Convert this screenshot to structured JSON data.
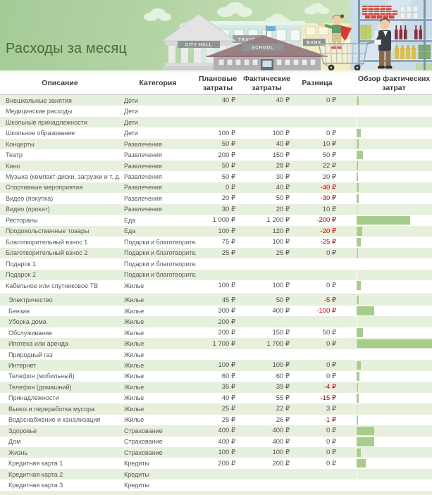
{
  "title": "Расходы за месяц",
  "illustration": {
    "signs": {
      "city_hall": "CITY HALL",
      "travel": "TRAVEL",
      "school": "SCHOOL",
      "bank": "BANK"
    }
  },
  "table": {
    "columns": [
      "Описание",
      "Категория",
      "Плановые затраты",
      "Фактические затраты",
      "Разница",
      "Обзор фактических затрат"
    ],
    "bar_max": 1700,
    "split_after_row": 18,
    "colors": {
      "title": "#4a6c30",
      "row-alt": "#e6f0dc",
      "bar": "#a7cd8c",
      "neg": "#c00000"
    },
    "rows": [
      {
        "description": "Внешкольные занятия",
        "category": "Дети",
        "planned": "40 ₽",
        "actual": "40 ₽",
        "diff": "0 ₽",
        "actual_value": 40
      },
      {
        "description": "Медицинские расходы",
        "category": "Дети",
        "planned": "",
        "actual": "",
        "diff": "",
        "actual_value": 0
      },
      {
        "description": "Школьные принадлежности",
        "category": "Дети",
        "planned": "",
        "actual": "",
        "diff": "",
        "actual_value": 0
      },
      {
        "description": "Школьное образование",
        "category": "Дети",
        "planned": "100 ₽",
        "actual": "100 ₽",
        "diff": "0 ₽",
        "actual_value": 100
      },
      {
        "description": "Концерты",
        "category": "Развлечения",
        "planned": "50 ₽",
        "actual": "40 ₽",
        "diff": "10 ₽",
        "actual_value": 40
      },
      {
        "description": "Театр",
        "category": "Развлечения",
        "planned": "200 ₽",
        "actual": "150 ₽",
        "diff": "50 ₽",
        "actual_value": 150
      },
      {
        "description": "Кино",
        "category": "Развлечения",
        "planned": "50 ₽",
        "actual": "28 ₽",
        "diff": "22 ₽",
        "actual_value": 28
      },
      {
        "description": "Музыка (компакт-диски, загрузки и т. д.)",
        "category": "Развлечения",
        "planned": "50 ₽",
        "actual": "30 ₽",
        "diff": "20 ₽",
        "actual_value": 30
      },
      {
        "description": "Спортивные мероприятия",
        "category": "Развлечения",
        "planned": "0 ₽",
        "actual": "40 ₽",
        "diff": "-40 ₽",
        "actual_value": 40
      },
      {
        "description": "Видео (покупка)",
        "category": "Развлечения",
        "planned": "20 ₽",
        "actual": "50 ₽",
        "diff": "-30 ₽",
        "actual_value": 50
      },
      {
        "description": "Видео (прокат)",
        "category": "Развлечения",
        "planned": "30 ₽",
        "actual": "20 ₽",
        "diff": "10 ₽",
        "actual_value": 20
      },
      {
        "description": "Рестораны",
        "category": "Еда",
        "planned": "1 000 ₽",
        "actual": "1 200 ₽",
        "diff": "-200 ₽",
        "actual_value": 1200
      },
      {
        "description": "Продовольственные товары",
        "category": "Еда",
        "planned": "100 ₽",
        "actual": "120 ₽",
        "diff": "-20 ₽",
        "actual_value": 120
      },
      {
        "description": "Благотворительный взнос 1",
        "category": "Подарки и благотворительность",
        "planned": "75 ₽",
        "actual": "100 ₽",
        "diff": "-25 ₽",
        "actual_value": 100
      },
      {
        "description": "Благотворительный взнос 2",
        "category": "Подарки и благотворительность",
        "planned": "25 ₽",
        "actual": "25 ₽",
        "diff": "0 ₽",
        "actual_value": 25
      },
      {
        "description": "Подарок 1",
        "category": "Подарки и благотворительность",
        "planned": "",
        "actual": "",
        "diff": "",
        "actual_value": 0
      },
      {
        "description": "Подарок 2",
        "category": "Подарки и благотворительность",
        "planned": "",
        "actual": "",
        "diff": "",
        "actual_value": 0
      },
      {
        "description": "Кабельное или спутниковое ТВ",
        "category": "Жилье",
        "planned": "100 ₽",
        "actual": "100 ₽",
        "diff": "0 ₽",
        "actual_value": 100
      },
      {
        "description": "Электричество",
        "category": "Жилье",
        "planned": "45 ₽",
        "actual": "50 ₽",
        "diff": "-5 ₽",
        "actual_value": 50
      },
      {
        "description": "Бензин",
        "category": "Жилье",
        "planned": "300 ₽",
        "actual": "400 ₽",
        "diff": "-100 ₽",
        "actual_value": 400
      },
      {
        "description": "Уборка дома",
        "category": "Жилье",
        "planned": "200 ₽",
        "actual": "",
        "diff": "",
        "actual_value": 0
      },
      {
        "description": "Обслуживание",
        "category": "Жилье",
        "planned": "200 ₽",
        "actual": "150 ₽",
        "diff": "50 ₽",
        "actual_value": 150
      },
      {
        "description": "Ипотека или аренда",
        "category": "Жилье",
        "planned": "1 700 ₽",
        "actual": "1 700 ₽",
        "diff": "0 ₽",
        "actual_value": 1700
      },
      {
        "description": "Природный газ",
        "category": "Жилье",
        "planned": "",
        "actual": "",
        "diff": "",
        "actual_value": 0
      },
      {
        "description": "Интернет",
        "category": "Жилье",
        "planned": "100 ₽",
        "actual": "100 ₽",
        "diff": "0 ₽",
        "actual_value": 100
      },
      {
        "description": "Телефон (мобильный)",
        "category": "Жилье",
        "planned": "60 ₽",
        "actual": "60 ₽",
        "diff": "0 ₽",
        "actual_value": 60
      },
      {
        "description": "Телефон (домашний)",
        "category": "Жилье",
        "planned": "35 ₽",
        "actual": "39 ₽",
        "diff": "-4 ₽",
        "actual_value": 39
      },
      {
        "description": "Принадлежности",
        "category": "Жилье",
        "planned": "40 ₽",
        "actual": "55 ₽",
        "diff": "-15 ₽",
        "actual_value": 55
      },
      {
        "description": "Вывоз и переработка мусора",
        "category": "Жилье",
        "planned": "25 ₽",
        "actual": "22 ₽",
        "diff": "3 ₽",
        "actual_value": 22
      },
      {
        "description": "Водоснабжение и канализация",
        "category": "Жилье",
        "planned": "25 ₽",
        "actual": "26 ₽",
        "diff": "-1 ₽",
        "actual_value": 26
      },
      {
        "description": "Здоровье",
        "category": "Страхование",
        "planned": "400 ₽",
        "actual": "400 ₽",
        "diff": "0 ₽",
        "actual_value": 400
      },
      {
        "description": "Дом",
        "category": "Страхование",
        "planned": "400 ₽",
        "actual": "400 ₽",
        "diff": "0 ₽",
        "actual_value": 400
      },
      {
        "description": "Жизнь",
        "category": "Страхование",
        "planned": "100 ₽",
        "actual": "100 ₽",
        "diff": "0 ₽",
        "actual_value": 100
      },
      {
        "description": "Кредитная карта 1",
        "category": "Кредиты",
        "planned": "200 ₽",
        "actual": "200 ₽",
        "diff": "0 ₽",
        "actual_value": 200
      },
      {
        "description": "Кредитная карта 2",
        "category": "Кредиты",
        "planned": "",
        "actual": "",
        "diff": "",
        "actual_value": 0
      },
      {
        "description": "Кредитная карта 3",
        "category": "Кредиты",
        "planned": "",
        "actual": "",
        "diff": "",
        "actual_value": 0
      }
    ]
  }
}
